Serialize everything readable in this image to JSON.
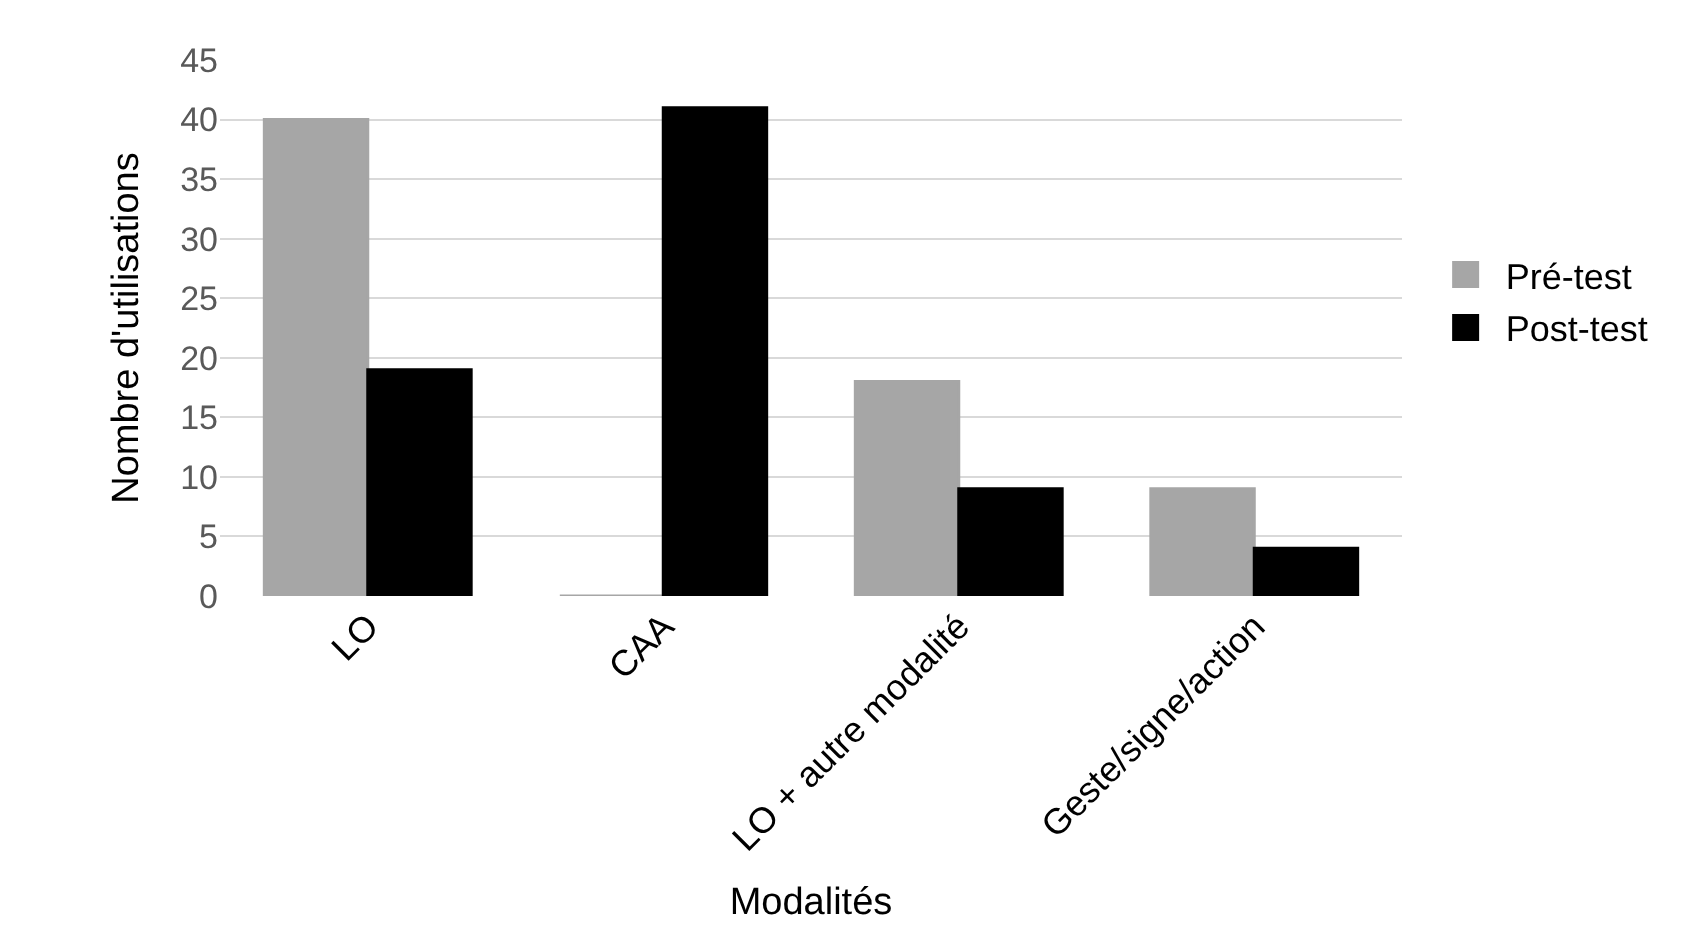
{
  "chart_data": {
    "type": "bar",
    "xlabel": "Modalités",
    "ylabel": "Nombre d'utilisations",
    "categories": [
      "LO",
      "CAA",
      "LO + autre modalité",
      "Geste/signe/action"
    ],
    "series": [
      {
        "name": "Pré-test",
        "color": "#a6a6a6",
        "values": [
          40,
          0,
          18,
          9
        ]
      },
      {
        "name": "Post-test",
        "color": "#000000",
        "values": [
          19,
          41,
          9,
          4
        ]
      }
    ],
    "ylim": [
      0,
      45
    ],
    "yticks": [
      0,
      5,
      10,
      15,
      20,
      25,
      30,
      35,
      40,
      45
    ],
    "grid": "y",
    "legend": "right"
  }
}
